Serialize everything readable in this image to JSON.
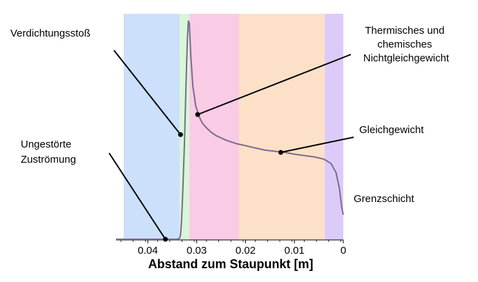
{
  "chart_data": {
    "type": "line",
    "title": "",
    "xlabel": "Abstand zum Staupunkt [m]",
    "ylabel": "",
    "x_reversed": true,
    "xlim": [
      0.0465,
      0.0
    ],
    "ylim": [
      0,
      1
    ],
    "grid": false,
    "xticks": [
      {
        "value": 0.04,
        "label": "0.04"
      },
      {
        "value": 0.03,
        "label": "0.03"
      },
      {
        "value": 0.02,
        "label": "0.02"
      },
      {
        "value": 0.01,
        "label": "0.01"
      },
      {
        "value": 0.0,
        "label": "0"
      }
    ],
    "regions": [
      {
        "name": "ungestoerte-zustroemung",
        "x_start": 0.0465,
        "x_end": 0.0335,
        "color": "#cce0fb"
      },
      {
        "name": "verdichtungsstoss",
        "x_start": 0.0335,
        "x_end": 0.0315,
        "color": "#d8f6d8"
      },
      {
        "name": "nichtgleichgewicht",
        "x_start": 0.0315,
        "x_end": 0.0213,
        "color": "#f9cbe4"
      },
      {
        "name": "gleichgewicht",
        "x_start": 0.0213,
        "x_end": 0.0038,
        "color": "#fce0c8"
      },
      {
        "name": "grenzschicht",
        "x_start": 0.0038,
        "x_end": 0.0,
        "color": "#dccbf8"
      }
    ],
    "series": [
      {
        "color": "#7a6a8e",
        "x": [
          0.0465,
          0.036,
          0.034,
          0.0335,
          0.0333,
          0.0331,
          0.0329,
          0.0327,
          0.0325,
          0.0323,
          0.0321,
          0.0319,
          0.0317,
          0.0315,
          0.0312,
          0.0308,
          0.0302,
          0.0295,
          0.0288,
          0.028,
          0.027,
          0.026,
          0.025,
          0.024,
          0.022,
          0.02,
          0.018,
          0.016,
          0.014,
          0.013,
          0.012,
          0.01,
          0.008,
          0.006,
          0.004,
          0.0025,
          0.0015,
          0.0008,
          0.0003,
          0.0
        ],
        "y": [
          0.0,
          0.0,
          0.0,
          0.005,
          0.02,
          0.08,
          0.18,
          0.3,
          0.44,
          0.6,
          0.76,
          0.9,
          0.98,
          0.97,
          0.82,
          0.69,
          0.6,
          0.55,
          0.52,
          0.5,
          0.48,
          0.465,
          0.455,
          0.445,
          0.43,
          0.42,
          0.41,
          0.4,
          0.395,
          0.392,
          0.39,
          0.382,
          0.376,
          0.37,
          0.36,
          0.34,
          0.3,
          0.23,
          0.14,
          0.11
        ]
      }
    ],
    "annotations": [
      {
        "text": "Verdichtungsstoß",
        "point_x": 0.0333,
        "point_y": 0.47
      },
      {
        "text": "Thermisches und chemisches Nichtgleichgewicht",
        "point_x": 0.0298,
        "point_y": 0.56
      },
      {
        "text": "Gleichgewicht",
        "point_x": 0.0128,
        "point_y": 0.39
      },
      {
        "text": "Ungestörte Zuströmung",
        "point_x": 0.0364,
        "point_y": 0.0
      },
      {
        "text": "Grenzschicht",
        "point_x": null,
        "point_y": null
      }
    ]
  }
}
